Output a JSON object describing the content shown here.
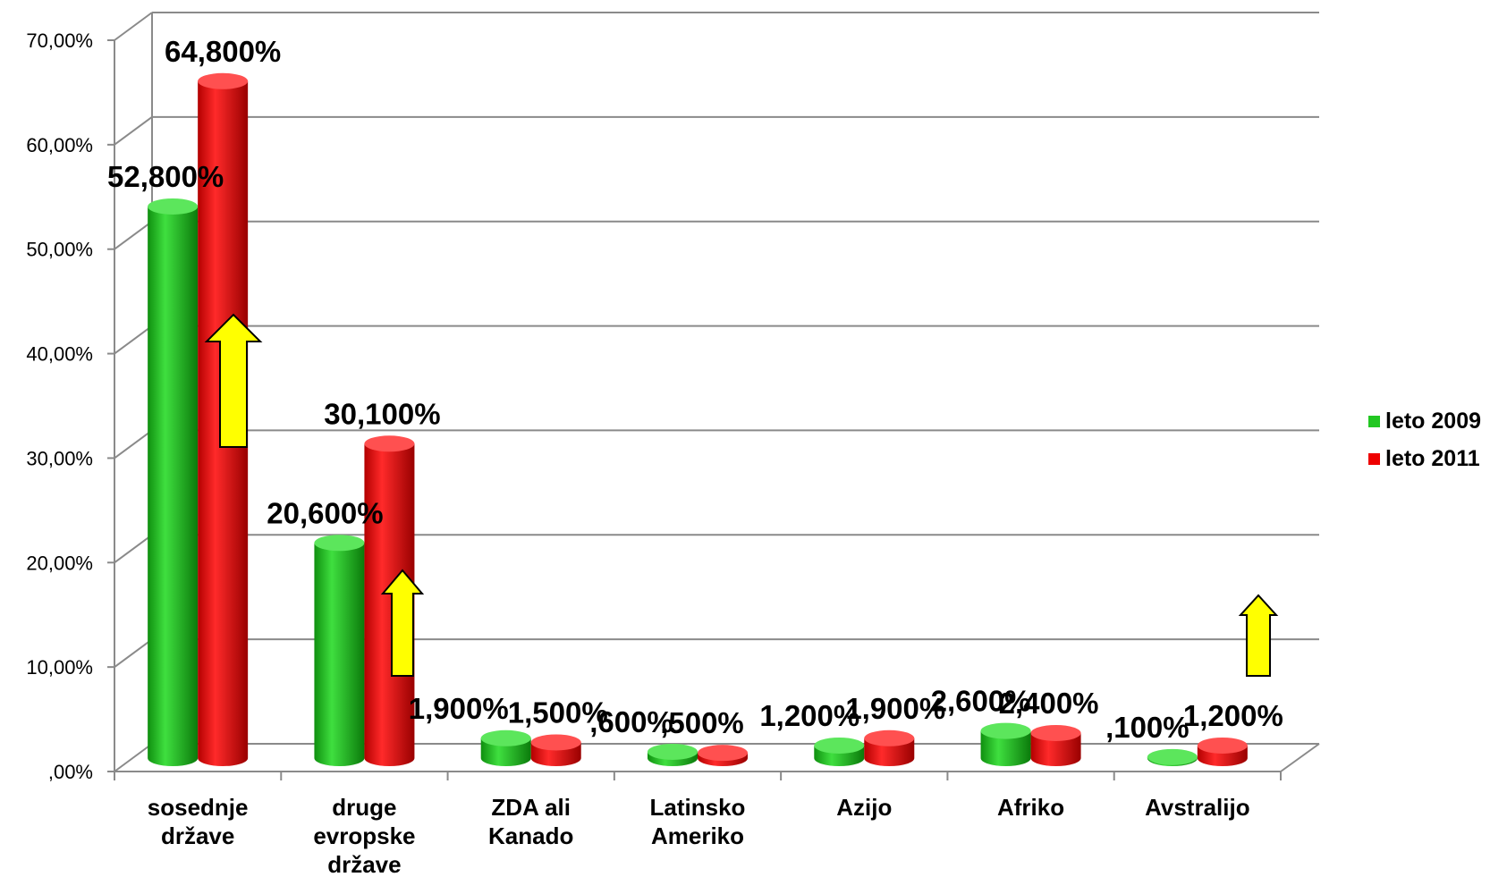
{
  "chart_data": {
    "type": "bar",
    "categories": [
      [
        "sosednje",
        "države"
      ],
      [
        "druge",
        "evropske",
        "države"
      ],
      [
        "ZDA ali",
        "Kanado"
      ],
      [
        "Latinsko",
        "Ameriko"
      ],
      [
        "Azijo"
      ],
      [
        "Afriko"
      ],
      [
        "Avstralijo"
      ]
    ],
    "series": [
      {
        "name": "leto 2009",
        "color": "#1fbf1f",
        "values": [
          52.8,
          20.6,
          1.9,
          0.6,
          1.2,
          2.6,
          0.1
        ],
        "labels": [
          "52,800%",
          "20,600%",
          "1,900%",
          ",600%",
          "1,200%",
          "2,600%",
          ",100%"
        ]
      },
      {
        "name": "leto 2011",
        "color": "#e60000",
        "values": [
          64.8,
          30.1,
          1.5,
          0.5,
          1.9,
          2.4,
          1.2
        ],
        "labels": [
          "64,800%",
          "30,100%",
          "1,500%",
          ",500%",
          "1,900%",
          "2,400%",
          "1,200%"
        ]
      }
    ],
    "ylim": [
      0,
      70
    ],
    "yticks": [
      ",00%",
      "10,00%",
      "20,00%",
      "30,00%",
      "40,00%",
      "50,00%",
      "60,00%",
      "70,00%"
    ],
    "grid": true,
    "legend": "right",
    "annotations": [
      "up-arrow",
      "up-arrow",
      "up-arrow"
    ]
  }
}
